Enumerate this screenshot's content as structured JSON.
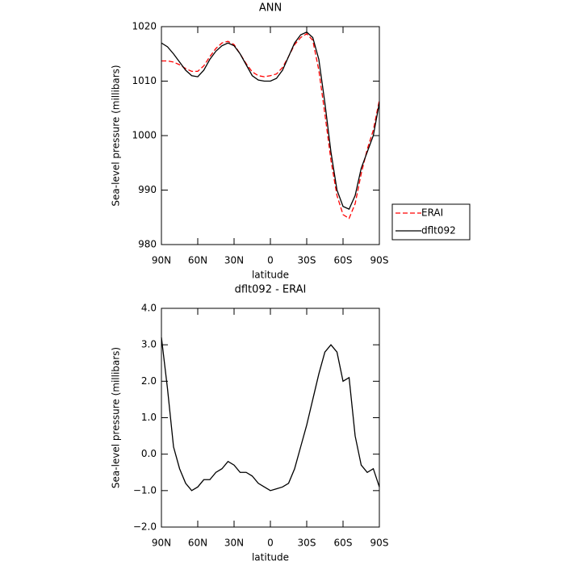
{
  "chart_data": [
    {
      "type": "line",
      "title": "ANN",
      "xlabel": "latitude",
      "ylabel": "Sea-level pressure (millibars)",
      "x": [
        90,
        85,
        80,
        75,
        70,
        65,
        60,
        55,
        50,
        45,
        40,
        35,
        30,
        25,
        20,
        15,
        10,
        5,
        0,
        -5,
        -10,
        -15,
        -20,
        -25,
        -30,
        -35,
        -40,
        -45,
        -50,
        -55,
        -60,
        -65,
        -70,
        -75,
        -80,
        -85,
        -90
      ],
      "series": [
        {
          "name": "ERAI",
          "color": "#ff0000",
          "dashed": true,
          "values": [
            1013.7,
            1013.7,
            1013.5,
            1013,
            1012.3,
            1011.8,
            1011.8,
            1012.8,
            1014.5,
            1016,
            1017,
            1017.3,
            1016.7,
            1015,
            1013.2,
            1011.7,
            1011,
            1010.8,
            1011,
            1011.3,
            1012.5,
            1014.5,
            1016.7,
            1018,
            1018.7,
            1017.5,
            1012,
            1004,
            995.5,
            989,
            985.5,
            984.8,
            987.5,
            993,
            997.5,
            1001,
            1006.5
          ]
        },
        {
          "name": "dflt092",
          "color": "#000000",
          "dashed": false,
          "values": [
            1017,
            1016.3,
            1015,
            1013.5,
            1012,
            1011,
            1010.8,
            1012,
            1014,
            1015.5,
            1016.5,
            1017,
            1016.5,
            1015,
            1013,
            1011,
            1010.2,
            1010,
            1010,
            1010.5,
            1012,
            1014.5,
            1017,
            1018.5,
            1019,
            1018,
            1014,
            1006,
            997,
            990,
            987,
            986.5,
            989,
            994,
            997,
            1000,
            1006
          ]
        }
      ],
      "xlim": [
        90,
        -90
      ],
      "xticks": [
        {
          "value": 90,
          "label": "90N"
        },
        {
          "value": 60,
          "label": "60N"
        },
        {
          "value": 30,
          "label": "30N"
        },
        0,
        {
          "value": -30,
          "label": "30S"
        },
        {
          "value": -60,
          "label": "60S"
        },
        {
          "value": -90,
          "label": "90S"
        }
      ],
      "ylim": [
        980,
        1020
      ],
      "yticks": [
        980,
        990,
        1000,
        1010,
        1020
      ],
      "legend": "right"
    },
    {
      "type": "line",
      "title": "dflt092 - ERAI",
      "xlabel": "latitude",
      "ylabel": "Sea-level pressure (millibars)",
      "x": [
        90,
        85,
        80,
        75,
        70,
        65,
        60,
        55,
        50,
        45,
        40,
        35,
        30,
        25,
        20,
        15,
        10,
        5,
        0,
        -5,
        -10,
        -15,
        -20,
        -25,
        -30,
        -35,
        -40,
        -45,
        -50,
        -55,
        -60,
        -65,
        -70,
        -75,
        -80,
        -85,
        -90
      ],
      "series": [
        {
          "color": "#000000",
          "dashed": false,
          "values": [
            3.2,
            1.8,
            0.2,
            -0.4,
            -0.8,
            -1.0,
            -0.9,
            -0.7,
            -0.7,
            -0.5,
            -0.4,
            -0.2,
            -0.3,
            -0.5,
            -0.5,
            -0.6,
            -0.8,
            -0.9,
            -1.0,
            -0.95,
            -0.9,
            -0.8,
            -0.4,
            0.2,
            0.8,
            1.5,
            2.2,
            2.8,
            3.0,
            2.8,
            2.0,
            2.1,
            0.5,
            -0.3,
            -0.5,
            -0.4,
            -0.9
          ]
        }
      ],
      "xlim": [
        90,
        -90
      ],
      "xticks": [
        {
          "value": 90,
          "label": "90N"
        },
        {
          "value": 60,
          "label": "60N"
        },
        {
          "value": 30,
          "label": "30N"
        },
        0,
        {
          "value": -30,
          "label": "30S"
        },
        {
          "value": -60,
          "label": "60S"
        },
        {
          "value": -90,
          "label": "90S"
        }
      ],
      "ylim": [
        -2,
        4
      ],
      "yticks": [
        {
          "value": -2,
          "label": "−2.0"
        },
        {
          "value": -1,
          "label": "−1.0"
        },
        {
          "value": 0,
          "label": "0.0"
        },
        {
          "value": 1,
          "label": "1.0"
        },
        {
          "value": 2,
          "label": "2.0"
        },
        {
          "value": 3,
          "label": "3.0"
        },
        {
          "value": 4,
          "label": "4.0"
        }
      ]
    }
  ]
}
